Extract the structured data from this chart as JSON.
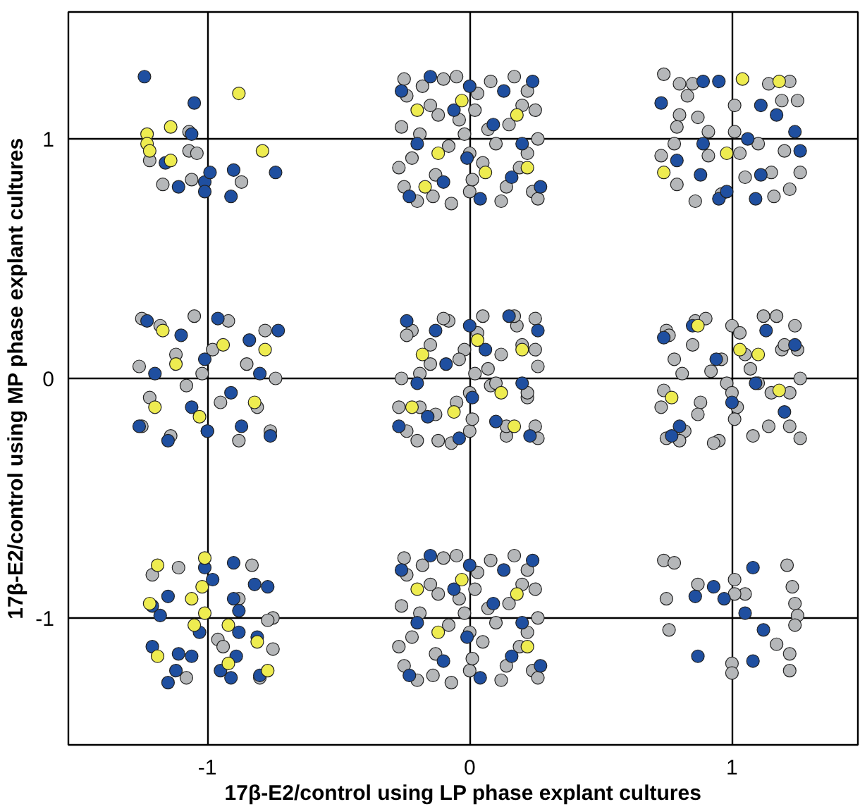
{
  "chart_data": {
    "type": "scatter",
    "xlabel": "17β-E2/control using LP phase explant cultures",
    "ylabel": "17β-E2/control using MP phase explant cultures",
    "xlim": [
      -1.53,
      1.48
    ],
    "ylim": [
      -1.53,
      1.53
    ],
    "xticks": [
      -1,
      0,
      1
    ],
    "yticks": [
      -1,
      0,
      1
    ],
    "grid": true,
    "marker": "circle",
    "series": [
      {
        "color": "#b5b7b9",
        "x": [
          -0.25,
          -0.18,
          -0.05,
          0.08,
          0.22,
          -0.26,
          -0.12,
          0.02,
          0.15,
          0.26,
          -0.22,
          -0.08,
          0.05,
          0.19,
          -0.25,
          -0.14,
          0.0,
          0.12,
          0.24,
          -0.02,
          -0.24,
          -0.1,
          0.03,
          0.17,
          0.25,
          -0.19,
          -0.04,
          0.1,
          0.22,
          -0.27,
          -0.13,
          0.01,
          0.14,
          0.26,
          -0.2,
          -0.07,
          0.07,
          0.2,
          -0.15,
          0.0,
          0.25,
          0.18,
          0.05,
          -0.08,
          -0.22,
          0.26,
          0.12,
          -0.02,
          -0.15,
          -0.26,
          0.22,
          0.08,
          -0.05,
          -0.19,
          0.25,
          0.14,
          0.0,
          -0.12,
          -0.24,
          0.02,
          -0.24,
          -0.1,
          0.03,
          0.17,
          0.25,
          -0.19,
          -0.04,
          0.1,
          0.22,
          -0.27,
          -0.13,
          0.01,
          0.14,
          0.26,
          -0.2,
          -0.07,
          0.07,
          0.2,
          -0.15,
          0.0,
          -1.25,
          -1.18,
          -1.05,
          -0.92,
          -0.78,
          -1.26,
          -1.12,
          -0.98,
          -0.85,
          -0.74,
          -1.22,
          -1.08,
          -0.95,
          -0.81,
          -1.25,
          -1.14,
          -1.0,
          -0.88,
          -0.76,
          -1.02,
          0.75,
          0.82,
          0.95,
          1.08,
          1.22,
          0.74,
          0.88,
          1.02,
          1.15,
          1.26,
          0.78,
          0.92,
          1.05,
          1.19,
          0.75,
          0.86,
          1.0,
          1.12,
          1.24,
          0.98,
          0.76,
          0.9,
          1.03,
          1.17,
          1.25,
          0.81,
          0.96,
          1.1,
          1.22,
          0.73,
          0.87,
          1.01,
          1.14,
          1.26,
          0.8,
          0.93,
          1.07,
          1.2,
          0.85,
          1.0,
          -0.25,
          -0.18,
          -0.05,
          0.08,
          0.22,
          -0.26,
          -0.12,
          0.02,
          0.15,
          0.26,
          -0.22,
          -0.08,
          0.05,
          0.19,
          -0.25,
          -0.14,
          0.0,
          0.12,
          0.24,
          -0.02,
          -0.24,
          -0.1,
          0.03,
          0.17,
          0.25,
          -0.19,
          -0.04,
          0.1,
          0.22,
          -0.27,
          -0.13,
          0.01,
          0.14,
          0.26,
          -0.2,
          -0.07,
          0.07,
          0.2,
          -0.15,
          0.0,
          0.74,
          0.8,
          0.85,
          0.83,
          1.14,
          1.22,
          1.25,
          1.19,
          1.01,
          0.8,
          0.87,
          0.79,
          0.91,
          1.01,
          0.78,
          0.73,
          0.91,
          1.03,
          1.1,
          1.2,
          0.79,
          0.86,
          0.96,
          1.05,
          1.15,
          1.22,
          1.26,
          1.16,
          -1.22,
          -1.17,
          -1.07,
          -1.07,
          -1.04,
          -1.06,
          -0.87,
          -1.21,
          -1.11,
          -0.83,
          -0.96,
          -0.94,
          -0.75,
          -0.77,
          -0.75,
          -1.08,
          -0.8,
          -0.88,
          0.74,
          0.78,
          0.75,
          0.76,
          0.87,
          1.01,
          1.05,
          1.01,
          1.21,
          1.23,
          1.24,
          1.25,
          1.24,
          1.17,
          1.22,
          1.22,
          1.0,
          1.0
        ],
        "values": [
          1.25,
          1.22,
          1.26,
          1.24,
          1.2,
          1.05,
          1.1,
          1.12,
          1.06,
          1.0,
          0.92,
          0.97,
          0.9,
          0.88,
          0.8,
          0.76,
          0.78,
          0.74,
          0.78,
          1.02,
          1.18,
          1.25,
          1.19,
          1.26,
          1.12,
          1.02,
          1.08,
          0.98,
          0.94,
          0.88,
          0.85,
          0.83,
          0.8,
          0.75,
          0.74,
          0.73,
          1.04,
          1.14,
          1.14,
          0.94,
          0.25,
          0.22,
          0.26,
          0.24,
          0.2,
          0.05,
          0.1,
          0.12,
          0.06,
          0.0,
          -0.08,
          -0.03,
          -0.1,
          -0.12,
          -0.2,
          -0.24,
          -0.22,
          -0.26,
          -0.22,
          0.02,
          0.18,
          0.25,
          0.19,
          0.26,
          0.12,
          0.02,
          0.08,
          -0.02,
          -0.06,
          -0.12,
          -0.15,
          -0.17,
          -0.2,
          -0.25,
          -0.26,
          -0.27,
          0.04,
          0.14,
          0.14,
          -0.06,
          0.25,
          0.22,
          0.26,
          0.24,
          0.2,
          0.05,
          0.1,
          0.12,
          0.06,
          0.0,
          -0.08,
          -0.03,
          -0.1,
          -0.12,
          -0.2,
          -0.24,
          -0.22,
          -0.26,
          -0.22,
          0.02,
          -0.25,
          -0.22,
          -0.26,
          -0.24,
          -0.2,
          -0.05,
          -0.1,
          -0.12,
          -0.06,
          0.0,
          0.08,
          0.03,
          0.1,
          0.12,
          0.2,
          0.24,
          0.22,
          0.26,
          0.22,
          -0.02,
          0.18,
          0.25,
          0.19,
          0.26,
          0.12,
          0.02,
          0.08,
          -0.02,
          -0.06,
          -0.12,
          -0.15,
          -0.17,
          -0.2,
          -0.25,
          -0.26,
          -0.27,
          0.04,
          0.14,
          0.14,
          -0.06,
          -0.75,
          -0.78,
          -0.74,
          -0.76,
          -0.8,
          -0.95,
          -0.9,
          -0.88,
          -0.94,
          -1.0,
          -1.08,
          -1.03,
          -1.1,
          -1.12,
          -1.2,
          -1.24,
          -1.22,
          -1.26,
          -1.22,
          -0.98,
          -0.82,
          -0.75,
          -0.81,
          -0.74,
          -0.88,
          -0.98,
          -0.92,
          -1.02,
          -1.06,
          -1.12,
          -1.15,
          -1.17,
          -1.2,
          -1.25,
          -1.26,
          -1.27,
          -0.96,
          -0.86,
          -0.86,
          -1.06,
          1.27,
          1.23,
          1.23,
          1.18,
          1.23,
          1.24,
          1.16,
          1.16,
          1.14,
          1.1,
          1.09,
          1.05,
          1.03,
          1.03,
          0.98,
          0.93,
          0.93,
          0.94,
          0.98,
          0.95,
          0.81,
          0.74,
          0.77,
          0.84,
          0.86,
          0.79,
          0.86,
          0.76,
          0.91,
          0.81,
          1.03,
          0.95,
          0.94,
          0.83,
          0.82,
          -0.82,
          -0.79,
          -0.78,
          -1.09,
          -1.12,
          -1.0,
          -1.01,
          -1.13,
          -1.25,
          -1.25,
          -0.92,
          -0.76,
          -0.77,
          -0.92,
          -1.05,
          -0.86,
          -0.84,
          -0.9,
          -0.9,
          -0.78,
          -0.87,
          -0.94,
          -0.99,
          -1.03,
          -1.11,
          -1.15,
          -1.22,
          -1.19,
          -1.23
        ]
      },
      {
        "color": "#1f4fa0",
        "x": [
          -0.26,
          -0.15,
          0.0,
          0.13,
          0.24,
          -0.2,
          -0.06,
          0.09,
          0.2,
          -0.23,
          -0.1,
          0.04,
          0.16,
          0.27,
          -0.01,
          0.26,
          0.15,
          0.0,
          -0.13,
          -0.24,
          0.2,
          0.06,
          -0.09,
          -0.2,
          0.23,
          0.1,
          -0.04,
          -0.16,
          -0.27,
          0.01,
          -1.26,
          -1.15,
          -1.0,
          -0.87,
          -0.76,
          -1.2,
          -1.06,
          -0.91,
          -0.8,
          -1.23,
          -1.1,
          -0.96,
          -0.84,
          -0.73,
          -1.01,
          -0.26,
          -0.15,
          0.0,
          0.13,
          0.24,
          -0.2,
          -0.06,
          0.09,
          0.2,
          -0.23,
          -0.1,
          0.04,
          0.16,
          0.27,
          -0.01,
          0.74,
          0.85,
          1.0,
          1.13,
          1.24,
          0.8,
          0.94,
          1.09,
          1.2,
          0.77,
          0.73,
          0.89,
          0.95,
          1.11,
          1.17,
          0.89,
          0.79,
          0.88,
          1.06,
          1.24,
          1.26,
          1.11,
          0.95,
          1.09,
          0.98,
          -1.24,
          -1.05,
          -1.06,
          -1.16,
          -1.11,
          -1.01,
          -1.01,
          -0.99,
          -0.9,
          -0.91,
          -0.74,
          -1.01,
          -0.9,
          -0.98,
          -0.82,
          -0.77,
          -1.15,
          -1.21,
          -1.18,
          -0.9,
          -0.88,
          -1.03,
          -0.88,
          -0.81,
          -1.21,
          -1.11,
          -1.06,
          -0.89,
          -0.95,
          -1.12,
          -1.15,
          -0.91,
          -0.8,
          1.08,
          0.93,
          0.86,
          0.97,
          1.05,
          1.12,
          0.87,
          1.08
        ],
        "values": [
          1.2,
          1.26,
          1.22,
          1.2,
          1.24,
          0.98,
          1.12,
          1.06,
          0.98,
          0.76,
          0.82,
          0.75,
          0.84,
          0.8,
          0.92,
          0.2,
          0.26,
          0.22,
          0.2,
          0.24,
          -0.02,
          0.12,
          0.06,
          -0.02,
          -0.24,
          -0.18,
          -0.25,
          -0.16,
          -0.2,
          -0.08,
          -0.2,
          -0.26,
          -0.22,
          -0.2,
          -0.24,
          0.02,
          -0.12,
          -0.06,
          0.02,
          0.24,
          0.18,
          0.25,
          0.16,
          0.2,
          0.08,
          -0.8,
          -0.74,
          -0.78,
          -0.8,
          -0.76,
          -1.02,
          -0.88,
          -0.94,
          -1.02,
          -1.24,
          -1.18,
          -1.25,
          -1.16,
          -1.2,
          -1.08,
          0.17,
          0.22,
          -0.1,
          0.2,
          0.14,
          -0.2,
          0.08,
          -0.02,
          -0.14,
          -0.24,
          1.15,
          1.24,
          1.24,
          1.14,
          1.1,
          0.98,
          0.91,
          0.85,
          1.0,
          1.03,
          0.95,
          0.85,
          0.75,
          0.75,
          0.78,
          1.26,
          1.15,
          1.02,
          0.9,
          0.8,
          0.82,
          0.78,
          0.86,
          0.87,
          0.76,
          0.86,
          -0.79,
          -0.77,
          -0.84,
          -0.86,
          -0.87,
          -0.91,
          -0.95,
          -0.99,
          -0.92,
          -0.97,
          -1.06,
          -1.06,
          -1.08,
          -1.12,
          -1.15,
          -1.16,
          -1.16,
          -1.22,
          -1.22,
          -1.27,
          -1.25,
          -1.24,
          -0.79,
          -0.87,
          -0.91,
          -0.92,
          -0.98,
          -1.05,
          -1.16,
          -1.18
        ]
      },
      {
        "color": "#eeec50",
        "x": [
          -0.2,
          -0.03,
          0.18,
          -0.12,
          0.06,
          0.22,
          -0.17,
          0.2,
          0.03,
          -0.18,
          0.12,
          -0.06,
          -0.22,
          0.17,
          -1.2,
          -1.03,
          -0.82,
          -1.12,
          -0.94,
          -0.78,
          -1.17,
          0.87,
          1.03,
          1.18,
          0.77,
          1.1,
          -0.2,
          -0.03,
          0.18,
          -0.12,
          0.22,
          1.04,
          1.18,
          0.74,
          0.98,
          -0.88,
          -1.23,
          -1.23,
          -1.22,
          -1.14,
          -1.14,
          -0.79,
          -1.01,
          -1.19,
          -1.02,
          -1.06,
          -1.22,
          -1.01,
          -0.92,
          -1.05,
          -0.81,
          -1.19,
          -0.92,
          -0.77
        ],
        "values": [
          1.12,
          1.16,
          1.1,
          0.94,
          0.86,
          0.88,
          0.8,
          0.12,
          0.16,
          0.1,
          -0.06,
          -0.14,
          -0.12,
          -0.2,
          -0.12,
          -0.16,
          -0.1,
          0.06,
          0.14,
          0.12,
          0.2,
          0.22,
          0.12,
          -0.05,
          -0.08,
          0.1,
          -0.88,
          -0.84,
          -0.9,
          -1.06,
          -1.12,
          1.25,
          1.24,
          0.86,
          0.94,
          1.19,
          1.02,
          0.98,
          0.95,
          1.05,
          0.91,
          0.95,
          -0.75,
          -0.78,
          -0.87,
          -0.92,
          -0.94,
          -0.98,
          -1.03,
          -1.03,
          -1.1,
          -1.16,
          -1.19,
          -1.22
        ]
      }
    ]
  }
}
